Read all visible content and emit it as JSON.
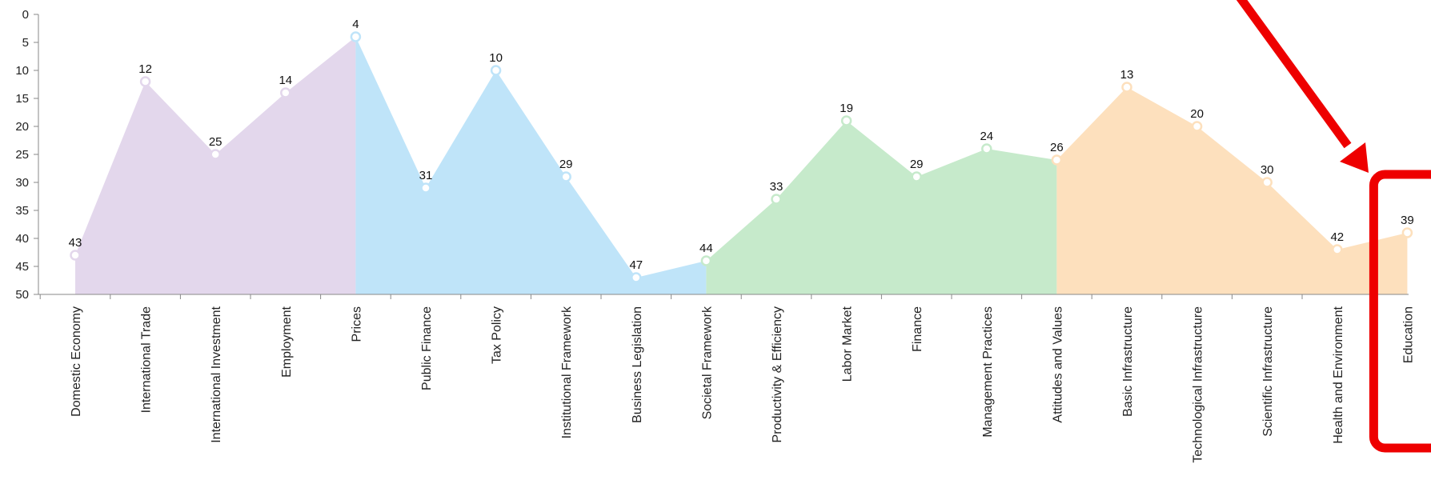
{
  "chart_data": {
    "type": "area",
    "categories": [
      "Domestic Economy",
      "International Trade",
      "International Investment",
      "Employment",
      "Prices",
      "Public Finance",
      "Tax Policy",
      "Institutional Framework",
      "Business Legislation",
      "Societal Framework",
      "Productivity & Efficiency",
      "Labor Market",
      "Finance",
      "Management Practices",
      "Attitudes and Values",
      "Basic Infrastructure",
      "Technological Infrastructure",
      "Scientific Infrastructure",
      "Health and Environment",
      "Education"
    ],
    "values": [
      43,
      12,
      25,
      14,
      4,
      31,
      10,
      29,
      47,
      44,
      33,
      19,
      29,
      24,
      26,
      13,
      20,
      30,
      42,
      39
    ],
    "segments": [
      {
        "start": 0,
        "end": 4,
        "color": "#e3d7ec"
      },
      {
        "start": 4,
        "end": 9,
        "color": "#bfe4f9"
      },
      {
        "start": 9,
        "end": 14,
        "color": "#c6eacb"
      },
      {
        "start": 14,
        "end": 19,
        "color": "#fde0bd"
      }
    ],
    "y_axis": {
      "reversed": true,
      "ylim": [
        0,
        50
      ],
      "ticks": [
        0,
        5,
        10,
        15,
        20,
        25,
        30,
        35,
        40,
        45,
        50
      ]
    },
    "xlabel": "",
    "ylabel": "",
    "annotation": {
      "type": "arrow-and-box",
      "target": "Education",
      "color": "#ee0000"
    }
  }
}
